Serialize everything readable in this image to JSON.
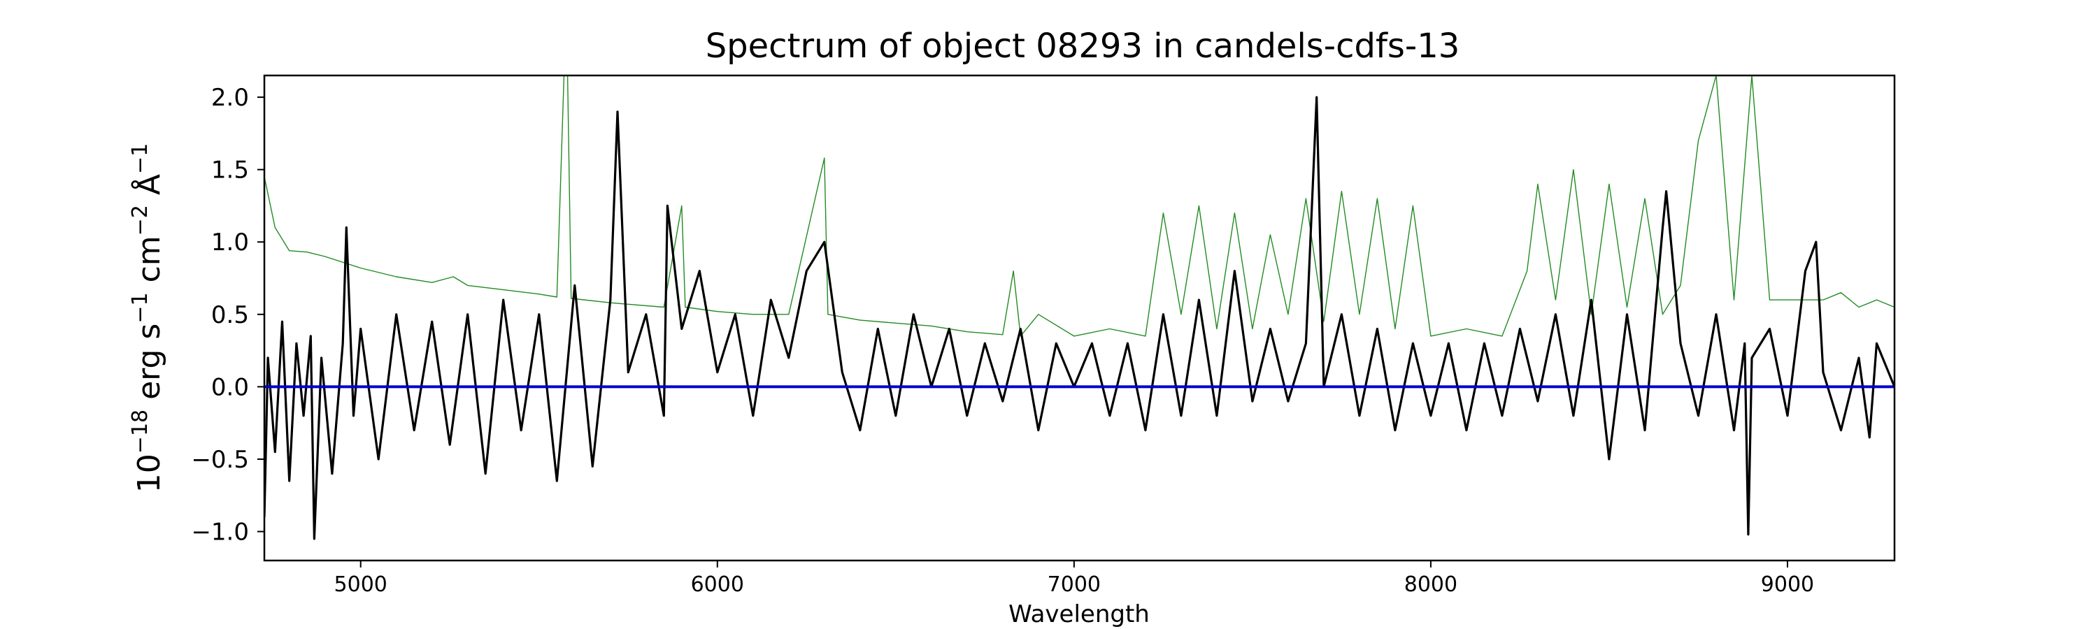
{
  "chart_data": {
    "type": "line",
    "title": "Spectrum of object 08293 in candels-cdfs-13",
    "xlabel": "Wavelength",
    "ylabel": {
      "base": "10",
      "exp": "−18",
      "unit1": " erg s",
      "exp1": "−1",
      "unit2": " cm",
      "exp2": "−2",
      "unit3": " Å",
      "exp3": "−1"
    },
    "xlim": [
      4730,
      9300
    ],
    "ylim": [
      -1.2,
      2.15
    ],
    "xticks": [
      5000,
      6000,
      7000,
      8000,
      9000
    ],
    "xtick_labels": [
      "5000",
      "6000",
      "7000",
      "8000",
      "9000"
    ],
    "yticks": [
      -1.0,
      -0.5,
      0.0,
      0.5,
      1.0,
      1.5,
      2.0
    ],
    "ytick_labels": [
      "−1.0",
      "−0.5",
      "0.0",
      "0.5",
      "1.0",
      "1.5",
      "2.0"
    ],
    "grid": false,
    "series": [
      {
        "color": "#228b22",
        "points": [
          [
            4730,
            1.45
          ],
          [
            4760,
            1.1
          ],
          [
            4800,
            0.94
          ],
          [
            4850,
            0.93
          ],
          [
            4900,
            0.9
          ],
          [
            5000,
            0.82
          ],
          [
            5100,
            0.76
          ],
          [
            5200,
            0.72
          ],
          [
            5260,
            0.76
          ],
          [
            5300,
            0.7
          ],
          [
            5400,
            0.67
          ],
          [
            5500,
            0.64
          ],
          [
            5550,
            0.62
          ],
          [
            5570,
            2.15
          ],
          [
            5580,
            2.15
          ],
          [
            5590,
            0.61
          ],
          [
            5700,
            0.58
          ],
          [
            5850,
            0.55
          ],
          [
            5900,
            1.25
          ],
          [
            5910,
            0.55
          ],
          [
            6000,
            0.52
          ],
          [
            6100,
            0.5
          ],
          [
            6200,
            0.5
          ],
          [
            6300,
            1.58
          ],
          [
            6310,
            0.5
          ],
          [
            6400,
            0.46
          ],
          [
            6500,
            0.44
          ],
          [
            6600,
            0.42
          ],
          [
            6700,
            0.38
          ],
          [
            6800,
            0.36
          ],
          [
            6830,
            0.8
          ],
          [
            6850,
            0.35
          ],
          [
            6900,
            0.5
          ],
          [
            7000,
            0.35
          ],
          [
            7100,
            0.4
          ],
          [
            7200,
            0.35
          ],
          [
            7250,
            1.2
          ],
          [
            7300,
            0.5
          ],
          [
            7350,
            1.25
          ],
          [
            7400,
            0.4
          ],
          [
            7450,
            1.2
          ],
          [
            7500,
            0.4
          ],
          [
            7550,
            1.05
          ],
          [
            7600,
            0.5
          ],
          [
            7650,
            1.3
          ],
          [
            7700,
            0.45
          ],
          [
            7750,
            1.35
          ],
          [
            7800,
            0.5
          ],
          [
            7850,
            1.3
          ],
          [
            7900,
            0.4
          ],
          [
            7950,
            1.25
          ],
          [
            8000,
            0.35
          ],
          [
            8100,
            0.4
          ],
          [
            8200,
            0.35
          ],
          [
            8270,
            0.8
          ],
          [
            8300,
            1.4
          ],
          [
            8350,
            0.6
          ],
          [
            8400,
            1.5
          ],
          [
            8450,
            0.5
          ],
          [
            8500,
            1.4
          ],
          [
            8550,
            0.55
          ],
          [
            8600,
            1.3
          ],
          [
            8650,
            0.5
          ],
          [
            8700,
            0.7
          ],
          [
            8750,
            1.7
          ],
          [
            8800,
            2.15
          ],
          [
            8850,
            0.6
          ],
          [
            8900,
            2.15
          ],
          [
            8950,
            0.6
          ],
          [
            9000,
            0.6
          ],
          [
            9050,
            0.6
          ],
          [
            9100,
            0.6
          ],
          [
            9150,
            0.65
          ],
          [
            9200,
            0.55
          ],
          [
            9250,
            0.6
          ],
          [
            9300,
            0.55
          ]
        ]
      },
      {
        "color": "#000000",
        "points": [
          [
            4730,
            -0.9
          ],
          [
            4740,
            0.2
          ],
          [
            4760,
            -0.45
          ],
          [
            4780,
            0.45
          ],
          [
            4800,
            -0.65
          ],
          [
            4820,
            0.3
          ],
          [
            4840,
            -0.2
          ],
          [
            4860,
            0.35
          ],
          [
            4870,
            -1.05
          ],
          [
            4890,
            0.2
          ],
          [
            4920,
            -0.6
          ],
          [
            4950,
            0.3
          ],
          [
            4960,
            1.1
          ],
          [
            4980,
            -0.2
          ],
          [
            5000,
            0.4
          ],
          [
            5050,
            -0.5
          ],
          [
            5100,
            0.5
          ],
          [
            5150,
            -0.3
          ],
          [
            5200,
            0.45
          ],
          [
            5250,
            -0.4
          ],
          [
            5300,
            0.5
          ],
          [
            5350,
            -0.6
          ],
          [
            5400,
            0.6
          ],
          [
            5450,
            -0.3
          ],
          [
            5500,
            0.5
          ],
          [
            5550,
            -0.65
          ],
          [
            5600,
            0.7
          ],
          [
            5650,
            -0.55
          ],
          [
            5700,
            0.6
          ],
          [
            5720,
            1.9
          ],
          [
            5750,
            0.1
          ],
          [
            5800,
            0.5
          ],
          [
            5850,
            -0.2
          ],
          [
            5860,
            1.25
          ],
          [
            5900,
            0.4
          ],
          [
            5950,
            0.8
          ],
          [
            6000,
            0.1
          ],
          [
            6050,
            0.5
          ],
          [
            6100,
            -0.2
          ],
          [
            6150,
            0.6
          ],
          [
            6200,
            0.2
          ],
          [
            6250,
            0.8
          ],
          [
            6300,
            1.0
          ],
          [
            6350,
            0.1
          ],
          [
            6400,
            -0.3
          ],
          [
            6450,
            0.4
          ],
          [
            6500,
            -0.2
          ],
          [
            6550,
            0.5
          ],
          [
            6600,
            0.0
          ],
          [
            6650,
            0.4
          ],
          [
            6700,
            -0.2
          ],
          [
            6750,
            0.3
          ],
          [
            6800,
            -0.1
          ],
          [
            6850,
            0.4
          ],
          [
            6900,
            -0.3
          ],
          [
            6950,
            0.3
          ],
          [
            7000,
            0.0
          ],
          [
            7050,
            0.3
          ],
          [
            7100,
            -0.2
          ],
          [
            7150,
            0.3
          ],
          [
            7200,
            -0.3
          ],
          [
            7250,
            0.5
          ],
          [
            7300,
            -0.2
          ],
          [
            7350,
            0.6
          ],
          [
            7400,
            -0.2
          ],
          [
            7450,
            0.8
          ],
          [
            7500,
            -0.1
          ],
          [
            7550,
            0.4
          ],
          [
            7600,
            -0.1
          ],
          [
            7650,
            0.3
          ],
          [
            7680,
            2.0
          ],
          [
            7700,
            0.0
          ],
          [
            7750,
            0.5
          ],
          [
            7800,
            -0.2
          ],
          [
            7850,
            0.4
          ],
          [
            7900,
            -0.3
          ],
          [
            7950,
            0.3
          ],
          [
            8000,
            -0.2
          ],
          [
            8050,
            0.3
          ],
          [
            8100,
            -0.3
          ],
          [
            8150,
            0.3
          ],
          [
            8200,
            -0.2
          ],
          [
            8250,
            0.4
          ],
          [
            8300,
            -0.1
          ],
          [
            8350,
            0.5
          ],
          [
            8400,
            -0.2
          ],
          [
            8450,
            0.6
          ],
          [
            8500,
            -0.5
          ],
          [
            8550,
            0.5
          ],
          [
            8600,
            -0.3
          ],
          [
            8650,
            1.1
          ],
          [
            8660,
            1.35
          ],
          [
            8700,
            0.3
          ],
          [
            8750,
            -0.2
          ],
          [
            8800,
            0.5
          ],
          [
            8850,
            -0.3
          ],
          [
            8880,
            0.3
          ],
          [
            8890,
            -1.02
          ],
          [
            8900,
            0.2
          ],
          [
            8950,
            0.4
          ],
          [
            9000,
            -0.2
          ],
          [
            9050,
            0.8
          ],
          [
            9080,
            1.0
          ],
          [
            9100,
            0.1
          ],
          [
            9150,
            -0.3
          ],
          [
            9200,
            0.2
          ],
          [
            9230,
            -0.35
          ],
          [
            9250,
            0.3
          ],
          [
            9300,
            0.0
          ]
        ]
      },
      {
        "color": "#0000cd",
        "points": [
          [
            4730,
            0.0
          ],
          [
            9300,
            0.0
          ]
        ]
      }
    ]
  }
}
